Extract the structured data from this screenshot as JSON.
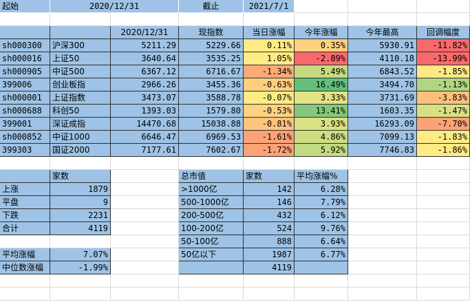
{
  "header": {
    "start_label": "起始",
    "start_date": "2020/12/31",
    "end_label": "截止",
    "end_date": "2021/7/1"
  },
  "main_table": {
    "headers": [
      "",
      "",
      "2020/12/31",
      "现指数",
      "当日涨幅",
      "今年涨幅",
      "今年最高",
      "回调幅度"
    ],
    "rows": [
      {
        "code": "sh000300",
        "name": "沪深300",
        "start": "5211.29",
        "now": "5229.66",
        "day": "0.11%",
        "ytd": "0.35%",
        "high": "5930.91",
        "pull": "-11.82%",
        "day_color": "#ffeb84",
        "ytd_color": "#fdd17f",
        "pull_color": "#f8696b"
      },
      {
        "code": "sh000016",
        "name": "上证50",
        "start": "3640.64",
        "now": "3535.25",
        "day": "1.05%",
        "ytd": "-2.89%",
        "high": "4110.18",
        "pull": "-13.99%",
        "day_color": "#ffeb84",
        "ytd_color": "#f8696b",
        "pull_color": "#f8696b"
      },
      {
        "code": "sh000905",
        "name": "中证500",
        "start": "6367.12",
        "now": "6716.67",
        "day": "-1.34%",
        "ytd": "5.49%",
        "high": "6843.52",
        "pull": "-1.85%",
        "day_color": "#fcaa78",
        "ytd_color": "#c6db81",
        "pull_color": "#ffe884"
      },
      {
        "code": "399006",
        "name": "创业板指",
        "start": "2966.26",
        "now": "3455.36",
        "day": "-0.63%",
        "ytd": "16.49%",
        "high": "3494.70",
        "pull": "-1.13%",
        "day_color": "#fece7f",
        "ytd_color": "#63be7b",
        "pull_color": "#b2d580"
      },
      {
        "code": "sh000001",
        "name": "上证指数",
        "start": "3473.07",
        "now": "3588.78",
        "day": "-0.07%",
        "ytd": "3.33%",
        "high": "3731.69",
        "pull": "-3.83%",
        "day_color": "#ffeb84",
        "ytd_color": "#e2e383",
        "pull_color": "#fdc07c"
      },
      {
        "code": "sh000688",
        "name": "科创50",
        "start": "1393.03",
        "now": "1579.80",
        "day": "-0.53%",
        "ytd": "13.41%",
        "high": "1603.35",
        "pull": "-1.47%",
        "day_color": "#fed280",
        "ytd_color": "#85c87d",
        "pull_color": "#d9e082"
      },
      {
        "code": "399001",
        "name": "深证成指",
        "start": "14470.68",
        "now": "15038.88",
        "day": "-0.81%",
        "ytd": "3.93%",
        "high": "16293.09",
        "pull": "-7.70%",
        "day_color": "#fec47d",
        "ytd_color": "#dae182",
        "pull_color": "#fba276"
      },
      {
        "code": "sh000852",
        "name": "中证1000",
        "start": "6646.47",
        "now": "6969.53",
        "day": "-1.61%",
        "ytd": "4.86%",
        "high": "7099.13",
        "pull": "-1.83%",
        "day_color": "#fba276",
        "ytd_color": "#cedd82",
        "pull_color": "#ffeb84"
      },
      {
        "code": "399303",
        "name": "国证2000",
        "start": "7177.61",
        "now": "7602.67",
        "day": "-1.72%",
        "ytd": "5.92%",
        "high": "7746.83",
        "pull": "-1.86%",
        "day_color": "#fba276",
        "ytd_color": "#c2da81",
        "pull_color": "#ffeb84"
      }
    ]
  },
  "breadth_table": {
    "header": [
      "",
      "家数"
    ],
    "rows": [
      {
        "label": "上涨",
        "value": "1879"
      },
      {
        "label": "平盘",
        "value": "9"
      },
      {
        "label": "下跌",
        "value": "2231"
      },
      {
        "label": "合计",
        "value": "4119"
      }
    ],
    "avg_label": "平均涨幅",
    "avg_value": "7.07%",
    "median_label": "中位数涨幅",
    "median_value": "-1.99%"
  },
  "cap_table": {
    "header": [
      "总市值",
      "家数",
      "平均涨幅%"
    ],
    "rows": [
      {
        "label": ">1000亿",
        "count": "142",
        "avg": "6.28%"
      },
      {
        "label": "500-1000亿",
        "count": "146",
        "avg": "7.79%"
      },
      {
        "label": "200-500亿",
        "count": "432",
        "avg": "6.12%"
      },
      {
        "label": "100-200亿",
        "count": "524",
        "avg": "9.76%"
      },
      {
        "label": "50-100亿",
        "count": "888",
        "avg": "6.64%"
      },
      {
        "label": "50亿以下",
        "count": "1987",
        "avg": "6.77%"
      }
    ],
    "total": "4119"
  }
}
